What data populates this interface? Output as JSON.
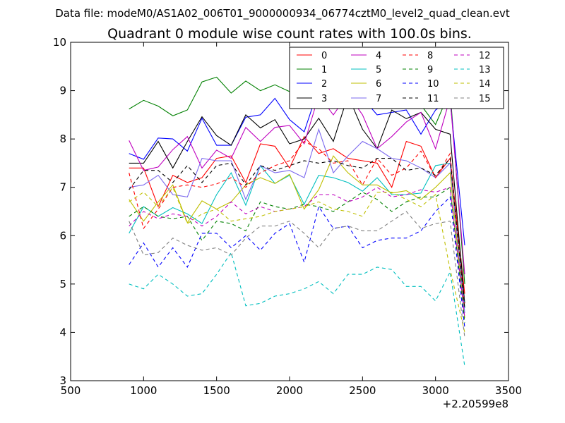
{
  "chart_data": {
    "type": "line",
    "suptitle": "Data file: modeM0/AS1A02_006T01_9000000934_06774cztM0_level2_quad_clean.evt",
    "title": "Quadrant 0 module wise count rates with 100.0s bins.",
    "xlabel": "",
    "ylabel": "",
    "offset_label": "+2.20599e8",
    "xlim": [
      500,
      3500
    ],
    "ylim": [
      3,
      10
    ],
    "xticks": [
      "500",
      "1000",
      "1500",
      "2000",
      "2500",
      "3000",
      "3500"
    ],
    "yticks": [
      "3",
      "4",
      "5",
      "6",
      "7",
      "8",
      "9",
      "10"
    ],
    "legend_position": "top-right",
    "x": [
      900,
      1000,
      1100,
      1200,
      1300,
      1400,
      1500,
      1600,
      1700,
      1800,
      1900,
      2000,
      2100,
      2200,
      2300,
      2400,
      2500,
      2600,
      2700,
      2800,
      2900,
      3000,
      3100,
      3200
    ],
    "series": [
      {
        "name": "0",
        "color": "#ff0000",
        "style": "solid",
        "values": [
          7.4,
          7.4,
          6.6,
          7.25,
          7.1,
          7.2,
          7.6,
          7.65,
          7.1,
          7.9,
          7.85,
          7.4,
          8.05,
          7.7,
          7.8,
          7.6,
          7.55,
          7.5,
          7.0,
          7.95,
          7.85,
          7.2,
          7.6,
          4.8
        ]
      },
      {
        "name": "1",
        "color": "#008000",
        "style": "solid",
        "values": [
          8.62,
          8.8,
          8.68,
          8.48,
          8.6,
          9.18,
          9.28,
          8.95,
          9.2,
          9.0,
          9.12,
          8.98,
          9.0,
          8.92,
          8.97,
          8.95,
          8.87,
          8.93,
          8.9,
          8.88,
          8.7,
          8.3,
          9.0,
          5.0
        ]
      },
      {
        "name": "2",
        "color": "#0000ff",
        "style": "solid",
        "values": [
          7.7,
          7.58,
          8.02,
          8.0,
          7.75,
          8.43,
          7.87,
          7.87,
          8.45,
          8.5,
          8.84,
          8.4,
          8.15,
          9.05,
          8.97,
          8.8,
          8.85,
          8.5,
          8.55,
          8.6,
          8.1,
          8.6,
          8.8,
          5.8
        ]
      },
      {
        "name": "3",
        "color": "#000000",
        "style": "solid",
        "values": [
          7.5,
          7.5,
          7.95,
          7.4,
          7.95,
          8.46,
          8.07,
          7.87,
          8.5,
          8.23,
          8.4,
          7.9,
          8.0,
          8.43,
          7.95,
          8.9,
          8.2,
          7.8,
          8.6,
          8.42,
          8.55,
          8.2,
          8.1,
          4.6
        ]
      },
      {
        "name": "4",
        "color": "#bf00bf",
        "style": "solid",
        "values": [
          7.97,
          7.35,
          7.42,
          7.78,
          8.05,
          7.4,
          7.77,
          7.6,
          8.24,
          7.95,
          8.24,
          8.28,
          7.9,
          8.9,
          8.5,
          8.93,
          8.5,
          7.8,
          8.05,
          8.35,
          8.55,
          7.8,
          8.85,
          5.2
        ]
      },
      {
        "name": "5",
        "color": "#00bfbf",
        "style": "solid",
        "values": [
          6.05,
          6.6,
          6.4,
          6.58,
          6.45,
          6.25,
          6.85,
          7.3,
          6.63,
          7.45,
          7.08,
          7.25,
          6.65,
          7.25,
          7.2,
          7.1,
          6.92,
          7.2,
          6.85,
          6.85,
          6.88,
          7.45,
          7.5,
          4.5
        ]
      },
      {
        "name": "6",
        "color": "#bfbf00",
        "style": "solid",
        "values": [
          6.75,
          6.3,
          6.7,
          7.05,
          6.27,
          6.72,
          6.55,
          6.7,
          7.05,
          7.2,
          7.08,
          7.27,
          6.55,
          6.95,
          7.65,
          7.3,
          7.05,
          7.05,
          6.88,
          6.93,
          6.75,
          7.0,
          7.3,
          4.3
        ]
      },
      {
        "name": "7",
        "color": "#7b68ee",
        "style": "solid",
        "values": [
          7.0,
          7.05,
          7.25,
          6.85,
          6.8,
          7.6,
          7.55,
          7.55,
          6.75,
          7.45,
          7.3,
          7.35,
          7.2,
          8.2,
          7.3,
          7.65,
          7.95,
          7.8,
          7.6,
          7.55,
          7.4,
          7.2,
          7.5,
          4.4
        ]
      },
      {
        "name": "8",
        "color": "#ff0000",
        "style": "dashed",
        "values": [
          7.3,
          6.15,
          6.55,
          7.0,
          7.05,
          7.0,
          7.07,
          7.2,
          7.0,
          7.3,
          7.45,
          7.55,
          7.95,
          7.8,
          7.5,
          7.55,
          7.05,
          7.6,
          7.25,
          7.4,
          7.75,
          7.2,
          7.7,
          4.5
        ]
      },
      {
        "name": "9",
        "color": "#008000",
        "style": "dashed",
        "values": [
          6.4,
          6.6,
          6.4,
          6.35,
          6.4,
          5.9,
          6.3,
          6.25,
          6.1,
          6.7,
          6.6,
          6.55,
          6.65,
          6.6,
          6.5,
          6.7,
          6.9,
          6.75,
          6.5,
          6.7,
          6.8,
          6.8,
          7.0,
          4.2
        ]
      },
      {
        "name": "10",
        "color": "#0000ff",
        "style": "dashed",
        "values": [
          5.4,
          5.85,
          5.35,
          5.75,
          5.35,
          6.05,
          6.05,
          5.75,
          6.0,
          5.7,
          6.05,
          6.25,
          5.45,
          6.6,
          6.15,
          6.2,
          5.75,
          5.9,
          5.95,
          5.95,
          6.1,
          6.5,
          6.8,
          4.1
        ]
      },
      {
        "name": "11",
        "color": "#000000",
        "style": "dashed",
        "values": [
          6.95,
          7.35,
          7.35,
          7.1,
          7.45,
          7.1,
          7.45,
          7.5,
          7.05,
          7.45,
          7.35,
          7.45,
          7.55,
          7.5,
          7.55,
          7.45,
          7.4,
          7.6,
          7.6,
          7.35,
          7.4,
          7.25,
          7.6,
          4.5
        ]
      },
      {
        "name": "12",
        "color": "#bf00bf",
        "style": "dashed",
        "values": [
          6.2,
          6.5,
          6.35,
          6.45,
          6.4,
          6.2,
          6.4,
          6.7,
          6.45,
          6.6,
          6.5,
          6.55,
          6.6,
          6.85,
          6.85,
          6.7,
          6.8,
          7.0,
          6.8,
          6.85,
          6.95,
          6.9,
          7.0,
          4.3
        ]
      },
      {
        "name": "13",
        "color": "#00bfbf",
        "style": "dashed",
        "values": [
          5.0,
          4.9,
          5.2,
          5.0,
          4.75,
          4.8,
          5.2,
          5.65,
          4.55,
          4.6,
          4.75,
          4.8,
          4.9,
          5.05,
          4.8,
          5.2,
          5.2,
          5.35,
          5.3,
          4.95,
          4.95,
          4.65,
          5.25,
          3.3
        ]
      },
      {
        "name": "14",
        "color": "#bfbf00",
        "style": "dashed",
        "values": [
          6.7,
          6.9,
          6.6,
          7.0,
          6.25,
          6.45,
          6.55,
          6.3,
          6.35,
          6.4,
          6.5,
          6.55,
          6.6,
          6.7,
          6.55,
          6.5,
          6.4,
          6.9,
          6.9,
          6.75,
          6.6,
          6.85,
          5.3,
          4.0
        ]
      },
      {
        "name": "15",
        "color": "#808080",
        "style": "dashed",
        "values": [
          6.3,
          5.6,
          5.65,
          5.95,
          5.8,
          5.7,
          5.75,
          5.6,
          5.95,
          6.2,
          6.2,
          6.3,
          6.05,
          5.75,
          6.15,
          6.2,
          6.1,
          6.1,
          6.3,
          6.5,
          6.15,
          6.25,
          6.3,
          3.9
        ]
      }
    ]
  }
}
